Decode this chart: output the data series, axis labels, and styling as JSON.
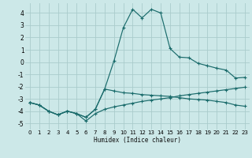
{
  "xlabel": "Humidex (Indice chaleur)",
  "background_color": "#cce8e8",
  "grid_color": "#aacccc",
  "line_color": "#1a6b6b",
  "xlim": [
    -0.5,
    23.5
  ],
  "ylim": [
    -5.5,
    4.8
  ],
  "xticks": [
    0,
    1,
    2,
    3,
    4,
    5,
    6,
    7,
    8,
    9,
    10,
    11,
    12,
    13,
    14,
    15,
    16,
    17,
    18,
    19,
    20,
    21,
    22,
    23
  ],
  "yticks": [
    -5,
    -4,
    -3,
    -2,
    -1,
    0,
    1,
    2,
    3,
    4
  ],
  "series1_x": [
    0,
    1,
    2,
    3,
    4,
    5,
    6,
    7,
    8,
    9,
    10,
    11,
    12,
    13,
    14,
    15,
    16,
    17,
    18,
    19,
    20,
    21,
    22,
    23
  ],
  "series1_y": [
    -3.3,
    -3.5,
    -4.0,
    -4.3,
    -4.0,
    -4.2,
    -4.5,
    -3.85,
    -2.2,
    -2.35,
    -2.5,
    -2.55,
    -2.65,
    -2.7,
    -2.75,
    -2.8,
    -2.9,
    -3.0,
    -3.05,
    -3.1,
    -3.2,
    -3.3,
    -3.5,
    -3.6
  ],
  "series2_x": [
    0,
    1,
    2,
    3,
    4,
    5,
    6,
    7,
    8,
    9,
    10,
    11,
    12,
    13,
    14,
    15,
    16,
    17,
    18,
    19,
    20,
    21,
    22,
    23
  ],
  "series2_y": [
    -3.3,
    -3.5,
    -4.0,
    -4.3,
    -4.0,
    -4.2,
    -4.8,
    -4.2,
    -3.85,
    -3.65,
    -3.5,
    -3.35,
    -3.2,
    -3.1,
    -3.0,
    -2.9,
    -2.75,
    -2.65,
    -2.55,
    -2.45,
    -2.35,
    -2.25,
    -2.15,
    -2.05
  ],
  "series3_x": [
    0,
    1,
    2,
    3,
    4,
    5,
    6,
    7,
    8,
    9,
    10,
    11,
    12,
    13,
    14,
    15,
    16,
    17,
    18,
    19,
    20,
    21,
    22,
    23
  ],
  "series3_y": [
    -3.3,
    -3.5,
    -4.0,
    -4.3,
    -4.0,
    -4.2,
    -4.5,
    -3.85,
    -2.2,
    0.1,
    2.8,
    4.3,
    3.6,
    4.3,
    4.0,
    1.1,
    0.4,
    0.35,
    -0.1,
    -0.3,
    -0.5,
    -0.65,
    -1.3,
    -1.25
  ]
}
